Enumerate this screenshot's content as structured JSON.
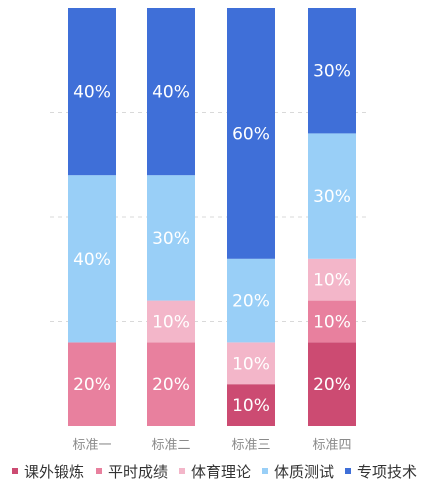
{
  "chart_data": {
    "type": "bar",
    "stacked": true,
    "categories": [
      "标准一",
      "标准二",
      "标准三",
      "标准四"
    ],
    "series": [
      {
        "name": "课外锻炼",
        "color": "#cc4b72",
        "values": [
          0,
          0,
          10,
          20
        ],
        "labels": [
          "",
          "",
          "10%",
          "20%"
        ]
      },
      {
        "name": "平时成绩",
        "color": "#e8809e",
        "values": [
          20,
          20,
          0,
          10
        ],
        "labels": [
          "20%",
          "20%",
          "",
          "10%"
        ]
      },
      {
        "name": "体育理论",
        "color": "#f3b6c9",
        "values": [
          0,
          10,
          10,
          10
        ],
        "labels": [
          "",
          "10%",
          "10%",
          "10%"
        ]
      },
      {
        "name": "体质测试",
        "color": "#99cff7",
        "values": [
          40,
          30,
          20,
          30
        ],
        "labels": [
          "40%",
          "30%",
          "20%",
          "30%"
        ]
      },
      {
        "name": "专项技术",
        "color": "#3f6fd8",
        "values": [
          40,
          40,
          60,
          30
        ],
        "labels": [
          "40%",
          "40%",
          "60%",
          "30%"
        ]
      }
    ],
    "ylim": [
      0,
      100
    ],
    "grid": true,
    "legend": "bottom"
  }
}
